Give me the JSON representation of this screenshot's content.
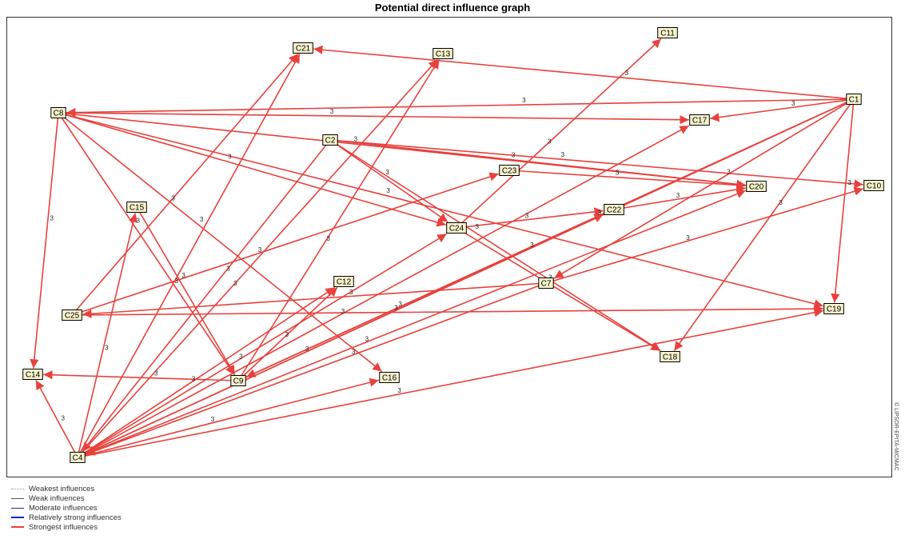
{
  "title": "Potential direct influence graph",
  "side_label": "© LIPSOR-EPITA-MICMAC",
  "edge_label": "3",
  "colors": {
    "edge": "#e8413c",
    "node_fill": "#f6f2cc"
  },
  "legend": [
    {
      "label": "Weakest influences",
      "style": "dotted",
      "color": "#9a9a9a",
      "width": 1
    },
    {
      "label": "Weak influences",
      "style": "solid",
      "color": "#555555",
      "width": 1
    },
    {
      "label": "Moderate influences",
      "style": "solid",
      "color": "#2b2b80",
      "width": 1
    },
    {
      "label": "Relatively strong influences",
      "style": "solid",
      "color": "#1f1fd0",
      "width": 2
    },
    {
      "label": "Strongest influences",
      "style": "solid",
      "color": "#e8413c",
      "width": 2
    }
  ],
  "nodes": [
    {
      "id": "C1",
      "label": "C1"
    },
    {
      "id": "C2",
      "label": "C2"
    },
    {
      "id": "C4",
      "label": "C4"
    },
    {
      "id": "C7",
      "label": "C7"
    },
    {
      "id": "C8",
      "label": "C8"
    },
    {
      "id": "C9",
      "label": "C9"
    },
    {
      "id": "C10",
      "label": "C10"
    },
    {
      "id": "C11",
      "label": "C11"
    },
    {
      "id": "C12",
      "label": "C12"
    },
    {
      "id": "C13",
      "label": "C13"
    },
    {
      "id": "C14",
      "label": "C14"
    },
    {
      "id": "C15",
      "label": "C15"
    },
    {
      "id": "C16",
      "label": "C16"
    },
    {
      "id": "C17",
      "label": "C17"
    },
    {
      "id": "C18",
      "label": "C18"
    },
    {
      "id": "C19",
      "label": "C19"
    },
    {
      "id": "C20",
      "label": "C20"
    },
    {
      "id": "C21",
      "label": "C21"
    },
    {
      "id": "C22",
      "label": "C22"
    },
    {
      "id": "C23",
      "label": "C23"
    },
    {
      "id": "C24",
      "label": "C24"
    },
    {
      "id": "C25",
      "label": "C25"
    }
  ],
  "edges": [
    {
      "from": "C1",
      "to": "C21",
      "weight": 3
    },
    {
      "from": "C1",
      "to": "C8",
      "weight": 3
    },
    {
      "from": "C1",
      "to": "C17",
      "weight": 3
    },
    {
      "from": "C1",
      "to": "C19",
      "weight": 3
    },
    {
      "from": "C1",
      "to": "C18",
      "weight": 3
    },
    {
      "from": "C1",
      "to": "C7",
      "weight": 3
    },
    {
      "from": "C1",
      "to": "C9",
      "weight": 3
    },
    {
      "from": "C1",
      "to": "C4",
      "weight": 3
    },
    {
      "from": "C8",
      "to": "C17",
      "weight": 3
    },
    {
      "from": "C8",
      "to": "C20",
      "weight": 3
    },
    {
      "from": "C8",
      "to": "C24",
      "weight": 3
    },
    {
      "from": "C8",
      "to": "C19",
      "weight": 3
    },
    {
      "from": "C8",
      "to": "C14",
      "weight": 3
    },
    {
      "from": "C8",
      "to": "C9",
      "weight": 3
    },
    {
      "from": "C8",
      "to": "C16",
      "weight": 3
    },
    {
      "from": "C2",
      "to": "C20",
      "weight": 3
    },
    {
      "from": "C2",
      "to": "C10",
      "weight": 3
    },
    {
      "from": "C2",
      "to": "C24",
      "weight": 3
    },
    {
      "from": "C2",
      "to": "C18",
      "weight": 3
    },
    {
      "from": "C2",
      "to": "C4",
      "weight": 3
    },
    {
      "from": "C23",
      "to": "C20",
      "weight": 3
    },
    {
      "from": "C24",
      "to": "C22",
      "weight": 3
    },
    {
      "from": "C24",
      "to": "C11",
      "weight": 3
    },
    {
      "from": "C24",
      "to": "C18",
      "weight": 3
    },
    {
      "from": "C22",
      "to": "C20",
      "weight": 3
    },
    {
      "from": "C7",
      "to": "C10",
      "weight": 3
    },
    {
      "from": "C7",
      "to": "C25",
      "weight": 3
    },
    {
      "from": "C7",
      "to": "C4",
      "weight": 3
    },
    {
      "from": "C25",
      "to": "C19",
      "weight": 3
    },
    {
      "from": "C25",
      "to": "C23",
      "weight": 3
    },
    {
      "from": "C25",
      "to": "C21",
      "weight": 3
    },
    {
      "from": "C9",
      "to": "C14",
      "weight": 3
    },
    {
      "from": "C9",
      "to": "C13",
      "weight": 3
    },
    {
      "from": "C9",
      "to": "C22",
      "weight": 3
    },
    {
      "from": "C9",
      "to": "C12",
      "weight": 3
    },
    {
      "from": "C4",
      "to": "C14",
      "weight": 3
    },
    {
      "from": "C4",
      "to": "C15",
      "weight": 3
    },
    {
      "from": "C4",
      "to": "C21",
      "weight": 3
    },
    {
      "from": "C4",
      "to": "C13",
      "weight": 3
    },
    {
      "from": "C4",
      "to": "C24",
      "weight": 3
    },
    {
      "from": "C4",
      "to": "C17",
      "weight": 3
    },
    {
      "from": "C4",
      "to": "C16",
      "weight": 3
    },
    {
      "from": "C4",
      "to": "C19",
      "weight": 3
    },
    {
      "from": "C4",
      "to": "C20",
      "weight": 3
    },
    {
      "from": "C4",
      "to": "C22",
      "weight": 3
    },
    {
      "from": "C4",
      "to": "C12",
      "weight": 3
    },
    {
      "from": "C15",
      "to": "C9",
      "weight": 3
    }
  ]
}
